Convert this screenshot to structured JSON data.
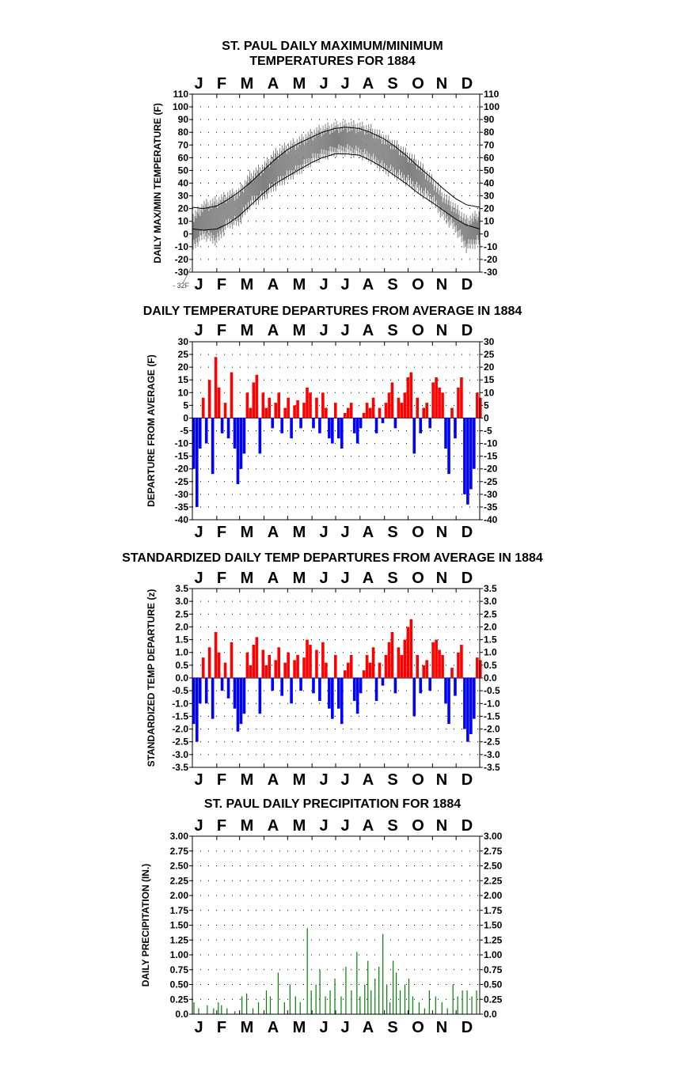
{
  "chart_data": [
    {
      "id": "maxmin",
      "type": "line",
      "title": [
        "ST. PAUL DAILY MAXIMUM/MINIMUM",
        "TEMPERATURES FOR 1884"
      ],
      "ylabel": "DAILY MAX/MIN TEMPERATURE (F)",
      "months": [
        "J",
        "F",
        "M",
        "A",
        "M",
        "J",
        "J",
        "A",
        "S",
        "O",
        "N",
        "D"
      ],
      "ylim": [
        -30,
        110
      ],
      "yticks": [
        "110",
        "100",
        "90",
        "80",
        "70",
        "60",
        "50",
        "40",
        "30",
        "20",
        "10",
        "0",
        "-10",
        "-20",
        "-30"
      ],
      "annotation": "- 32F",
      "grid": "dotted",
      "series": [
        {
          "role": "daily-range",
          "color": "#808080",
          "x": [
            1,
            15,
            32,
            46,
            60,
            74,
            91,
            105,
            121,
            135,
            152,
            166,
            182,
            196,
            213,
            227,
            244,
            258,
            274,
            288,
            305,
            319,
            335,
            349,
            366
          ],
          "y_max": [
            12,
            22,
            25,
            30,
            32,
            45,
            52,
            62,
            68,
            72,
            78,
            82,
            84,
            85,
            84,
            82,
            75,
            70,
            62,
            55,
            42,
            30,
            20,
            10,
            15
          ],
          "y_min": [
            -10,
            0,
            -5,
            8,
            10,
            24,
            30,
            38,
            45,
            50,
            58,
            62,
            65,
            66,
            64,
            60,
            52,
            48,
            42,
            35,
            28,
            15,
            5,
            -10,
            -5
          ]
        },
        {
          "role": "normal-max",
          "color": "#000000",
          "x": [
            1,
            15,
            32,
            46,
            60,
            74,
            91,
            105,
            121,
            135,
            152,
            166,
            182,
            196,
            213,
            227,
            244,
            258,
            274,
            288,
            305,
            319,
            335,
            349,
            366
          ],
          "y": [
            21,
            20,
            22,
            27,
            33,
            40,
            50,
            58,
            66,
            71,
            76,
            80,
            83,
            84,
            83,
            80,
            75,
            69,
            61,
            53,
            44,
            36,
            28,
            23,
            21
          ]
        },
        {
          "role": "normal-min",
          "color": "#000000",
          "x": [
            1,
            15,
            32,
            46,
            60,
            74,
            91,
            105,
            121,
            135,
            152,
            166,
            182,
            196,
            213,
            227,
            244,
            258,
            274,
            288,
            305,
            319,
            335,
            349,
            366
          ],
          "y": [
            4,
            3,
            4,
            8,
            14,
            22,
            32,
            39,
            45,
            50,
            56,
            60,
            63,
            63,
            62,
            58,
            52,
            46,
            39,
            32,
            25,
            19,
            12,
            7,
            4
          ]
        }
      ]
    },
    {
      "id": "departures",
      "type": "bar",
      "title": [
        "DAILY TEMPERATURE DEPARTURES FROM AVERAGE IN 1884"
      ],
      "ylabel": "DEPARTURE FROM AVERAGE (F)",
      "months": [
        "J",
        "F",
        "M",
        "A",
        "M",
        "J",
        "J",
        "A",
        "S",
        "O",
        "N",
        "D"
      ],
      "ylim": [
        -40,
        30
      ],
      "yticks": [
        "30",
        "25",
        "20",
        "15",
        "10",
        "5",
        "0",
        "-5",
        "-10",
        "-15",
        "-20",
        "-25",
        "-30",
        "-35",
        "-40"
      ],
      "grid": "dotted",
      "positive_color": "#ff0000",
      "negative_color": "#0000ff",
      "x": [
        1,
        5,
        9,
        13,
        17,
        21,
        25,
        29,
        33,
        37,
        41,
        45,
        49,
        53,
        57,
        61,
        65,
        69,
        73,
        77,
        81,
        85,
        89,
        93,
        97,
        101,
        105,
        109,
        113,
        117,
        121,
        125,
        129,
        133,
        137,
        141,
        145,
        149,
        153,
        157,
        161,
        165,
        169,
        173,
        177,
        181,
        185,
        189,
        193,
        197,
        201,
        205,
        209,
        213,
        217,
        221,
        225,
        229,
        233,
        237,
        241,
        245,
        249,
        253,
        257,
        261,
        265,
        269,
        273,
        277,
        281,
        285,
        289,
        293,
        297,
        301,
        305,
        309,
        313,
        317,
        321,
        325,
        329,
        333,
        337,
        341,
        345,
        349,
        353,
        357,
        361,
        365
      ],
      "values": [
        -20,
        -35,
        -12,
        8,
        -10,
        15,
        -22,
        24,
        12,
        -6,
        6,
        -8,
        18,
        -12,
        -26,
        -20,
        -14,
        10,
        4,
        14,
        17,
        -14,
        10,
        4,
        8,
        -4,
        6,
        10,
        -6,
        4,
        8,
        -8,
        5,
        7,
        -4,
        6,
        12,
        10,
        -4,
        8,
        -6,
        10,
        4,
        -8,
        -10,
        6,
        -8,
        -12,
        2,
        4,
        6,
        -6,
        -10,
        -4,
        2,
        6,
        4,
        8,
        -6,
        4,
        -2,
        6,
        10,
        14,
        -4,
        8,
        6,
        10,
        16,
        18,
        -14,
        8,
        -6,
        4,
        6,
        -4,
        14,
        16,
        12,
        10,
        -12,
        -22,
        4,
        -8,
        12,
        16,
        -30,
        -34,
        -28,
        -20,
        10,
        8
      ]
    },
    {
      "id": "standardized",
      "type": "bar",
      "title": [
        "STANDARDIZED DAILY TEMP DEPARTURES FROM AVERAGE IN 1884"
      ],
      "ylabel": "STANDARDIZED TEMP DEPARTURE (z)",
      "months": [
        "J",
        "F",
        "M",
        "A",
        "M",
        "J",
        "J",
        "A",
        "S",
        "O",
        "N",
        "D"
      ],
      "ylim": [
        -3.5,
        3.5
      ],
      "yticks": [
        "3.5",
        "3.0",
        "2.5",
        "2.0",
        "1.5",
        "1.0",
        "0.5",
        "0.0",
        "-0.5",
        "-1.0",
        "-1.5",
        "-2.0",
        "-2.5",
        "-3.0",
        "-3.5"
      ],
      "grid": "dotted",
      "positive_color": "#ff0000",
      "negative_color": "#0000ff",
      "x": [
        1,
        5,
        9,
        13,
        17,
        21,
        25,
        29,
        33,
        37,
        41,
        45,
        49,
        53,
        57,
        61,
        65,
        69,
        73,
        77,
        81,
        85,
        89,
        93,
        97,
        101,
        105,
        109,
        113,
        117,
        121,
        125,
        129,
        133,
        137,
        141,
        145,
        149,
        153,
        157,
        161,
        165,
        169,
        173,
        177,
        181,
        185,
        189,
        193,
        197,
        201,
        205,
        209,
        213,
        217,
        221,
        225,
        229,
        233,
        237,
        241,
        245,
        249,
        253,
        257,
        261,
        265,
        269,
        273,
        277,
        281,
        285,
        289,
        293,
        297,
        301,
        305,
        309,
        313,
        317,
        321,
        325,
        329,
        333,
        337,
        341,
        345,
        349,
        353,
        357,
        361,
        365
      ],
      "values": [
        -1.8,
        -2.5,
        -1.0,
        0.8,
        -1.0,
        1.2,
        -1.6,
        1.8,
        1.0,
        -0.5,
        0.6,
        -0.8,
        1.4,
        -1.2,
        -2.1,
        -1.8,
        -1.4,
        1.0,
        0.5,
        1.3,
        1.6,
        -1.4,
        1.1,
        0.5,
        0.9,
        -0.5,
        0.7,
        1.2,
        -0.7,
        0.6,
        1.0,
        -1.0,
        0.7,
        0.9,
        -0.5,
        0.8,
        1.5,
        1.3,
        -0.6,
        1.1,
        -0.9,
        1.4,
        0.6,
        -1.2,
        -1.6,
        0.9,
        -1.2,
        -1.8,
        0.3,
        0.6,
        0.9,
        -0.9,
        -1.4,
        -0.6,
        0.3,
        0.9,
        0.6,
        1.2,
        -0.9,
        0.6,
        -0.3,
        0.9,
        1.4,
        1.8,
        -0.6,
        1.2,
        0.9,
        1.5,
        2.0,
        2.3,
        -1.5,
        0.9,
        -0.6,
        0.5,
        0.7,
        -0.5,
        1.4,
        1.5,
        1.1,
        0.9,
        -1.0,
        -1.8,
        0.4,
        -0.7,
        1.0,
        1.3,
        -2.0,
        -2.5,
        -2.2,
        -1.6,
        0.8,
        0.7
      ]
    },
    {
      "id": "precip",
      "type": "bar",
      "title": [
        "ST. PAUL DAILY PRECIPITATION FOR 1884"
      ],
      "ylabel": "DAILY PRECIPITATION (IN.)",
      "months": [
        "J",
        "F",
        "M",
        "A",
        "M",
        "J",
        "J",
        "A",
        "S",
        "O",
        "N",
        "D"
      ],
      "ylim": [
        0,
        3
      ],
      "yticks": [
        "3.00",
        "2.75",
        "2.50",
        "2.25",
        "2.00",
        "1.75",
        "1.50",
        "1.25",
        "1.00",
        "0.75",
        "0.50",
        "0.25",
        "0.0"
      ],
      "grid": "dotted",
      "color": "#008000",
      "x": [
        3,
        9,
        20,
        28,
        34,
        38,
        45,
        55,
        64,
        70,
        78,
        85,
        95,
        100,
        110,
        118,
        125,
        132,
        138,
        147,
        152,
        158,
        163,
        170,
        176,
        182,
        190,
        196,
        203,
        210,
        214,
        220,
        224,
        228,
        233,
        238,
        243,
        248,
        252,
        256,
        260,
        265,
        271,
        276,
        281,
        289,
        296,
        302,
        310,
        318,
        325,
        332,
        338,
        344,
        350,
        356,
        362
      ],
      "values": [
        0.2,
        0.1,
        0.15,
        0.1,
        0.2,
        0.15,
        0.1,
        0.05,
        0.3,
        0.35,
        0.1,
        0.2,
        0.4,
        0.3,
        0.7,
        0.2,
        0.5,
        0.3,
        0.2,
        1.45,
        0.4,
        0.5,
        0.75,
        0.3,
        0.4,
        0.6,
        0.3,
        0.8,
        0.4,
        1.05,
        0.3,
        0.5,
        0.9,
        0.4,
        0.6,
        0.8,
        1.35,
        0.5,
        0.2,
        0.9,
        0.7,
        0.4,
        0.5,
        0.6,
        0.3,
        0.2,
        0.1,
        0.4,
        0.3,
        0.2,
        0.1,
        0.5,
        0.3,
        0.4,
        0.4,
        0.3,
        0.4
      ]
    }
  ]
}
